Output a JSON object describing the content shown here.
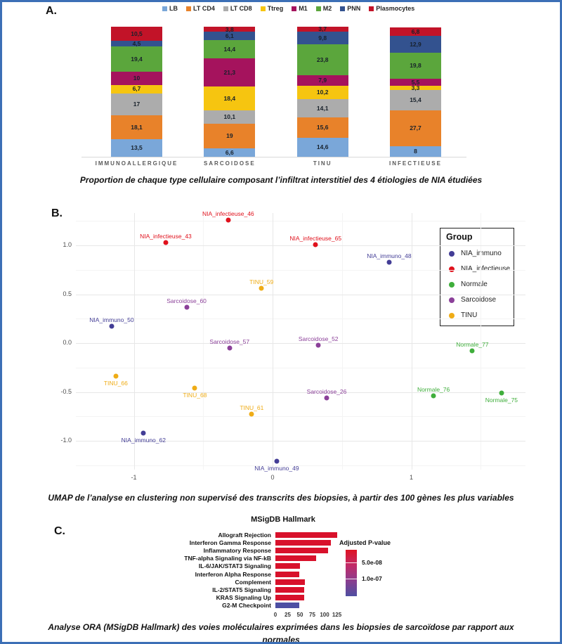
{
  "panel_a": {
    "label": "A.",
    "caption": "Proportion de chaque type cellulaire composant l’infiltrat interstitiel des 4 étiologies de NIA étudiées",
    "legend": [
      {
        "name": "LB",
        "color": "#7AA7D9"
      },
      {
        "name": "LT CD4",
        "color": "#E8822A"
      },
      {
        "name": "LT CD8",
        "color": "#ACACAC"
      },
      {
        "name": "Ttreg",
        "color": "#F6C510"
      },
      {
        "name": "M1",
        "color": "#A5135D"
      },
      {
        "name": "M2",
        "color": "#5BA63C"
      },
      {
        "name": "PNN",
        "color": "#33528F"
      },
      {
        "name": "Plasmocytes",
        "color": "#C21328"
      }
    ],
    "chart_data": {
      "type": "bar",
      "stacked": true,
      "categories": [
        "IMMUNOALLERGIQUE",
        "SARCOIDOSE",
        "TINU",
        "INFECTIEUSE"
      ],
      "series": [
        {
          "name": "LB",
          "color": "#7AA7D9",
          "values": [
            13.5,
            6.6,
            14.6,
            8
          ],
          "labels": [
            "13,5",
            "6,6",
            "14,6",
            "8"
          ]
        },
        {
          "name": "LT CD4",
          "color": "#E8822A",
          "values": [
            18.1,
            19,
            15.6,
            27.7
          ],
          "labels": [
            "18,1",
            "19",
            "15,6",
            "27,7"
          ]
        },
        {
          "name": "LT CD8",
          "color": "#ACACAC",
          "values": [
            17,
            10.1,
            14.1,
            15.4
          ],
          "labels": [
            "17",
            "10,1",
            "14,1",
            "15,4"
          ]
        },
        {
          "name": "Ttreg",
          "color": "#F6C510",
          "values": [
            6.7,
            18.4,
            10.2,
            3.3
          ],
          "labels": [
            "6,7",
            "18,4",
            "10,2",
            "3,3"
          ]
        },
        {
          "name": "M1",
          "color": "#A5135D",
          "values": [
            10,
            21.3,
            7.9,
            5.5
          ],
          "labels": [
            "10",
            "21,3",
            "7,9",
            "5,5"
          ]
        },
        {
          "name": "M2",
          "color": "#5BA63C",
          "values": [
            19.4,
            14.4,
            23.8,
            19.8
          ],
          "labels": [
            "19,4",
            "14,4",
            "23,8",
            "19,8"
          ]
        },
        {
          "name": "PNN",
          "color": "#33528F",
          "values": [
            4.5,
            6.1,
            9.8,
            12.9
          ],
          "labels": [
            "4,5",
            "6,1",
            "9,8",
            "12,9"
          ]
        },
        {
          "name": "Plasmocytes",
          "color": "#C21328",
          "values": [
            10.5,
            3.8,
            3.7,
            6.8
          ],
          "labels": [
            "10,5",
            "3,8",
            "3,7",
            "6,8"
          ]
        }
      ],
      "ylim": [
        0,
        100
      ]
    }
  },
  "panel_b": {
    "label": "B.",
    "caption": "UMAP de l’analyse en clustering non supervisé des transcrits des biopsies, à partir des 100 gènes les plus variables",
    "legend": {
      "title": "Group",
      "items": [
        {
          "name": "NIA_immuno",
          "color": "#433D96"
        },
        {
          "name": "NIA_infectieuse",
          "color": "#E0111C"
        },
        {
          "name": "Normale",
          "color": "#3FAE3B"
        },
        {
          "name": "Sarcoidose",
          "color": "#8B4099"
        },
        {
          "name": "TINU",
          "color": "#EFAC16"
        }
      ]
    },
    "chart_data": {
      "type": "scatter",
      "xlim": [
        -1.42,
        1.82
      ],
      "ylim": [
        -1.29,
        1.33
      ],
      "x_ticks": [
        {
          "v": -1,
          "label": "-1"
        },
        {
          "v": 0,
          "label": "0"
        },
        {
          "v": 1,
          "label": "1"
        }
      ],
      "y_ticks": [
        {
          "v": 1.0,
          "label": "1.0"
        },
        {
          "v": 0.5,
          "label": "0.5"
        },
        {
          "v": 0.0,
          "label": "0.0"
        },
        {
          "v": -0.5,
          "label": "-0.5"
        },
        {
          "v": -1.0,
          "label": "-1.0"
        }
      ],
      "x_minor": [
        -0.5,
        0.5,
        1.5
      ],
      "y_minor": [
        1.25,
        0.75,
        0.25,
        -0.25,
        -0.75,
        -1.25
      ],
      "grid": true,
      "legend_position": "inside-right",
      "points": [
        {
          "label": "NIA_infectieuse_46",
          "group": "NIA_infectieuse",
          "x": -0.32,
          "y": 1.26,
          "label_pos": "above"
        },
        {
          "label": "NIA_infectieuse_43",
          "group": "NIA_infectieuse",
          "x": -0.77,
          "y": 1.03,
          "label_pos": "above"
        },
        {
          "label": "NIA_infectieuse_65",
          "group": "NIA_infectieuse",
          "x": 0.31,
          "y": 1.01,
          "label_pos": "above"
        },
        {
          "label": "NIA_immuno_48",
          "group": "NIA_immuno",
          "x": 0.84,
          "y": 0.83,
          "label_pos": "above"
        },
        {
          "label": "TINU_59",
          "group": "TINU",
          "x": -0.08,
          "y": 0.56,
          "label_pos": "above"
        },
        {
          "label": "Sarcoidose_60",
          "group": "Sarcoidose",
          "x": -0.62,
          "y": 0.37,
          "label_pos": "above"
        },
        {
          "label": "NIA_immuno_50",
          "group": "NIA_immuno",
          "x": -1.16,
          "y": 0.17,
          "label_pos": "above"
        },
        {
          "label": "Sarcoidose_57",
          "group": "Sarcoidose",
          "x": -0.31,
          "y": -0.05,
          "label_pos": "above"
        },
        {
          "label": "Sarcoidose_52",
          "group": "Sarcoidose",
          "x": 0.33,
          "y": -0.02,
          "label_pos": "above"
        },
        {
          "label": "Normale_77",
          "group": "Normale",
          "x": 1.44,
          "y": -0.08,
          "label_pos": "above"
        },
        {
          "label": "TINU_66",
          "group": "TINU",
          "x": -1.13,
          "y": -0.34,
          "label_pos": "below"
        },
        {
          "label": "TINU_68",
          "group": "TINU",
          "x": -0.56,
          "y": -0.46,
          "label_pos": "below"
        },
        {
          "label": "Normale_76",
          "group": "Normale",
          "x": 1.16,
          "y": -0.54,
          "label_pos": "above"
        },
        {
          "label": "Normale_75",
          "group": "Normale",
          "x": 1.65,
          "y": -0.51,
          "label_pos": "below"
        },
        {
          "label": "Sarcoidose_26",
          "group": "Sarcoidose",
          "x": 0.39,
          "y": -0.56,
          "label_pos": "above"
        },
        {
          "label": "TINU_61",
          "group": "TINU",
          "x": -0.15,
          "y": -0.73,
          "label_pos": "above"
        },
        {
          "label": "NIA_immuno_62",
          "group": "NIA_immuno",
          "x": -0.93,
          "y": -0.92,
          "label_pos": "below"
        },
        {
          "label": "NIA_immuno_49",
          "group": "NIA_immuno",
          "x": 0.03,
          "y": -1.21,
          "label_pos": "below"
        }
      ]
    }
  },
  "panel_c": {
    "label": "C.",
    "caption_lines": [
      "Analyse ORA (MSigDB Hallmark) des voies moléculaires exprimées dans les biopsies de sarcoïdose par rapport aux",
      "normales"
    ],
    "legend": {
      "title": "Adjusted P-value",
      "ticks": [
        "5.0e-08",
        "1.0e-07"
      ],
      "gradient": [
        "#DF1222",
        "#C22A67",
        "#8A3E8F",
        "#4E4FA1"
      ]
    },
    "chart_data": {
      "type": "bar",
      "orientation": "horizontal",
      "title": "MSigDB Hallmark",
      "categories": [
        "Allograft Rejection",
        "Interferon Gamma Response",
        "Inflammatory Response",
        "TNF-alpha Signaling via NF-kB",
        "IL-6/JAK/STAT3 Signaling",
        "Interferon Alpha Response",
        "Complement",
        "IL-2/STAT5 Signaling",
        "KRAS Signaling Up",
        "G2-M Checkpoint"
      ],
      "values": [
        125,
        113,
        107,
        83,
        50,
        49,
        60,
        58,
        58,
        48
      ],
      "colors": [
        "#D8112B",
        "#D8112B",
        "#D8112B",
        "#D8112B",
        "#D8112B",
        "#D8112B",
        "#D8112B",
        "#D8112B",
        "#D8112B",
        "#4D4FA3"
      ],
      "x_ticks": [
        0,
        25,
        50,
        75,
        100,
        125
      ],
      "xlim": [
        0,
        130
      ]
    }
  }
}
